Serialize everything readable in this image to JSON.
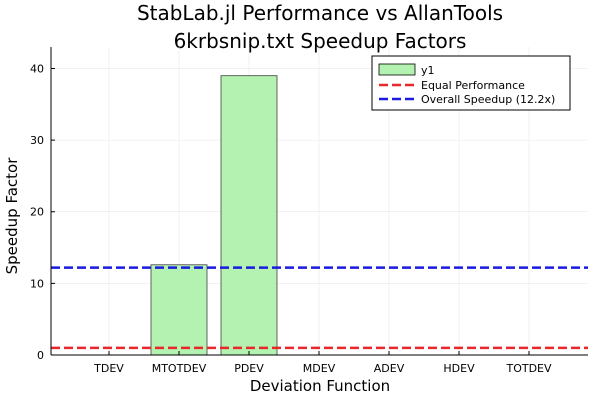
{
  "chart_data": {
    "type": "bar",
    "title_line1": "StabLab.jl Performance vs AllanTools",
    "title_line2": "6krbsnip.txt Speedup Factors",
    "xlabel": "Deviation Function",
    "ylabel": "Speedup Factor",
    "categories": [
      "TDEV",
      "MTOTDEV",
      "PDEV",
      "MDEV",
      "ADEV",
      "HDEV",
      "TOTDEV"
    ],
    "series": [
      {
        "name": "y1",
        "values": [
          null,
          12.6,
          39.0,
          null,
          null,
          null,
          null
        ],
        "color": "#b3f2b0"
      }
    ],
    "reference_lines": [
      {
        "name": "Equal Performance",
        "value": 1.0,
        "color": "#e8282b",
        "style": "dashed"
      },
      {
        "name": "Overall Speedup (12.2x)",
        "value": 12.2,
        "color": "#1a1ae0",
        "style": "dashed"
      }
    ],
    "yticks": [
      "0",
      "10",
      "20",
      "30",
      "40"
    ],
    "ytick_values": [
      0,
      10,
      20,
      30,
      40
    ],
    "ylim": [
      0,
      43
    ],
    "grid": true,
    "legend_position": "top-right"
  }
}
